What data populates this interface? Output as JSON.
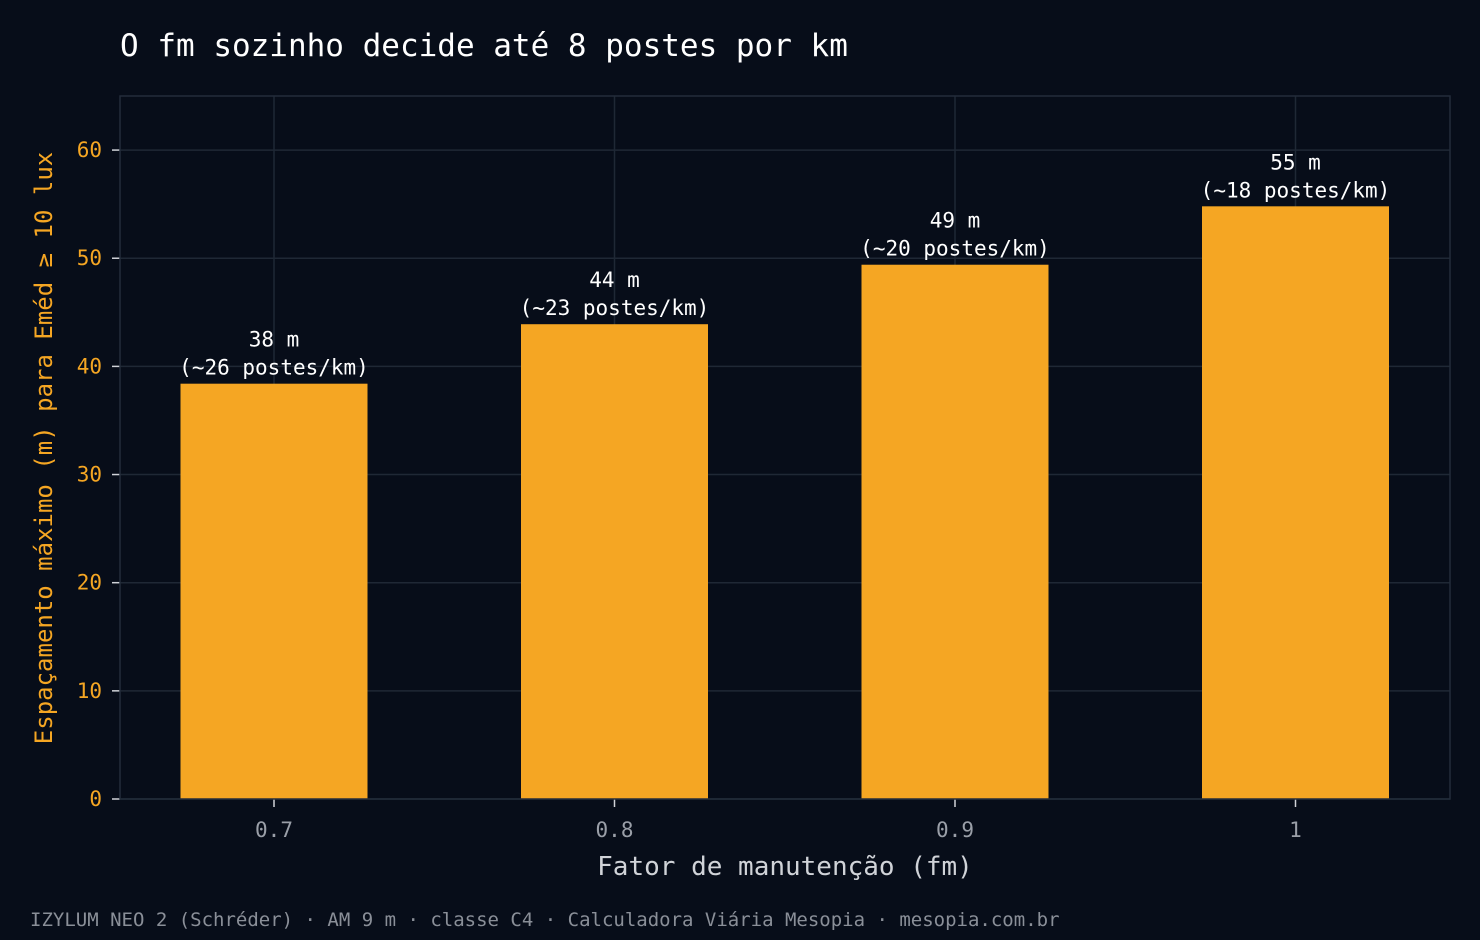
{
  "chart_data": {
    "type": "bar",
    "title": "O fm sozinho decide até 8 postes por km",
    "xlabel": "Fator de manutenção (fm)",
    "ylabel": "Espaçamento máximo (m) para Eméd ≥ 10 lux",
    "categories": [
      "0.7",
      "0.8",
      "0.9",
      "1"
    ],
    "values": [
      38.4,
      43.9,
      49.4,
      54.8
    ],
    "data_labels": [
      [
        "38 m",
        "(~26 postes/km)"
      ],
      [
        "44 m",
        "(~23 postes/km)"
      ],
      [
        "49 m",
        "(~20 postes/km)"
      ],
      [
        "55 m",
        "(~18 postes/km)"
      ]
    ],
    "ylim": [
      0,
      65
    ],
    "yticks": [
      0,
      10,
      20,
      30,
      40,
      50,
      60
    ],
    "grid": true,
    "bar_color": "#f5a623",
    "background_color": "#070d19",
    "footer": "IZYLUM NEO 2 (Schréder) · AM 9 m · classe C4 · Calculadora Viária Mesopia · mesopia.com.br"
  }
}
